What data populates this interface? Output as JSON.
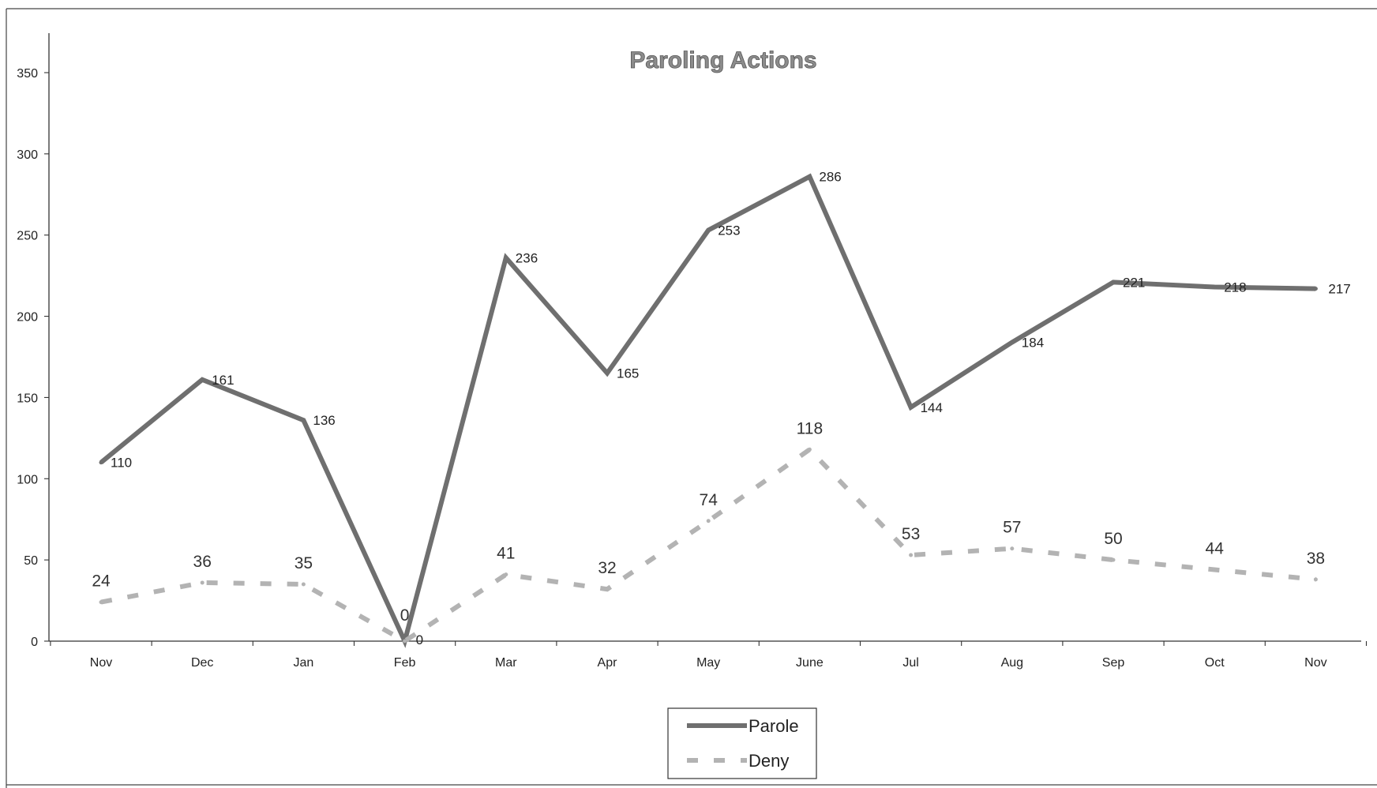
{
  "chart_data": {
    "type": "line",
    "title": "Paroling Actions",
    "xlabel": "",
    "ylabel": "",
    "categories": [
      "Nov",
      "Dec",
      "Jan",
      "Feb",
      "Mar",
      "Apr",
      "May",
      "June",
      "Jul",
      "Aug",
      "Sep",
      "Oct",
      "Nov"
    ],
    "yticks": [
      "0",
      "50",
      "100",
      "150",
      "200",
      "250",
      "300",
      "350"
    ],
    "ylim": [
      0,
      350
    ],
    "grid": false,
    "legend": "bottom-center",
    "series": [
      {
        "name": "Parole",
        "values": [
          110,
          161,
          136,
          0,
          236,
          165,
          253,
          286,
          144,
          184,
          221,
          218,
          217
        ],
        "labels": [
          "110",
          "161",
          "136",
          "0",
          "236",
          "165",
          "253",
          "286",
          "144",
          "184",
          "221",
          "218",
          "217"
        ],
        "color": "#6f6f6f",
        "style": "solid"
      },
      {
        "name": "Deny",
        "values": [
          24,
          36,
          35,
          0,
          41,
          32,
          74,
          118,
          53,
          57,
          50,
          44,
          38
        ],
        "labels": [
          "24",
          "36",
          "35",
          "0",
          "41",
          "32",
          "74",
          "118",
          "53",
          "57",
          "50",
          "44",
          "38"
        ],
        "color": "#b3b3b3",
        "style": "dashed"
      }
    ]
  }
}
